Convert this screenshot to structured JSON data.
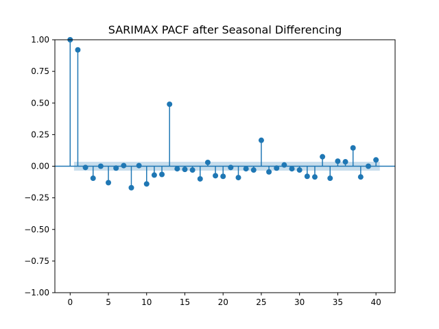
{
  "chart_data": {
    "type": "stem",
    "title": "SARIMAX PACF after Seasonal Differencing",
    "xlabel": "",
    "ylabel": "",
    "xlim": [
      -2,
      42.5
    ],
    "ylim": [
      -1.0,
      1.0
    ],
    "xticks": [
      0,
      5,
      10,
      15,
      20,
      25,
      30,
      35,
      40
    ],
    "xtick_labels": [
      "0",
      "5",
      "10",
      "15",
      "20",
      "25",
      "30",
      "35",
      "40"
    ],
    "yticks": [
      1.0,
      0.75,
      0.5,
      0.25,
      0.0,
      -0.25,
      -0.5,
      -0.75,
      -1.0
    ],
    "ytick_labels": [
      "1.00",
      "0.75",
      "0.50",
      "0.25",
      "0.00",
      "−0.25",
      "−0.50",
      "−0.75",
      "−1.00"
    ],
    "confidence_interval": {
      "lower": -0.035,
      "upper": 0.035,
      "x_range": [
        0.5,
        40.5
      ]
    },
    "grid": false,
    "color": "#1f77b4",
    "lags": [
      0,
      1,
      2,
      3,
      4,
      5,
      6,
      7,
      8,
      9,
      10,
      11,
      12,
      13,
      14,
      15,
      16,
      17,
      18,
      19,
      20,
      21,
      22,
      23,
      24,
      25,
      26,
      27,
      28,
      29,
      30,
      31,
      32,
      33,
      34,
      35,
      36,
      37,
      38,
      39,
      40
    ],
    "values": [
      1.0,
      0.92,
      -0.01,
      -0.095,
      0.0,
      -0.13,
      -0.015,
      0.005,
      -0.17,
      0.005,
      -0.14,
      -0.07,
      -0.065,
      0.49,
      -0.02,
      -0.025,
      -0.03,
      -0.1,
      0.03,
      -0.075,
      -0.08,
      -0.01,
      -0.09,
      -0.02,
      -0.03,
      0.205,
      -0.045,
      -0.015,
      0.01,
      -0.02,
      -0.03,
      -0.08,
      -0.085,
      0.075,
      -0.095,
      0.04,
      0.035,
      0.145,
      -0.085,
      0.0,
      0.05
    ]
  }
}
